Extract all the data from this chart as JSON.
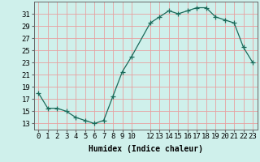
{
  "x": [
    0,
    1,
    2,
    3,
    4,
    5,
    6,
    7,
    8,
    9,
    10,
    12,
    13,
    14,
    15,
    16,
    17,
    18,
    19,
    20,
    21,
    22,
    23
  ],
  "y": [
    18,
    15.5,
    15.5,
    15,
    14,
    13.5,
    13,
    13.5,
    17.5,
    21.5,
    24,
    29.5,
    30.5,
    31.5,
    31,
    31.5,
    32,
    32,
    30.5,
    30,
    29.5,
    25.5,
    23
  ],
  "line_color": "#1a6b5a",
  "marker": "+",
  "marker_size": 4,
  "marker_color": "#1a6b5a",
  "bg_color": "#cff0eb",
  "grid_color": "#e8a0a0",
  "xlabel": "Humidex (Indice chaleur)",
  "xlim": [
    -0.5,
    23.5
  ],
  "ylim": [
    12,
    33
  ],
  "yticks": [
    13,
    15,
    17,
    19,
    21,
    23,
    25,
    27,
    29,
    31
  ],
  "xticks": [
    0,
    1,
    2,
    3,
    4,
    5,
    6,
    7,
    8,
    9,
    10,
    12,
    13,
    14,
    15,
    16,
    17,
    18,
    19,
    20,
    21,
    22,
    23
  ],
  "xlabel_fontsize": 7,
  "tick_fontsize": 6.5
}
